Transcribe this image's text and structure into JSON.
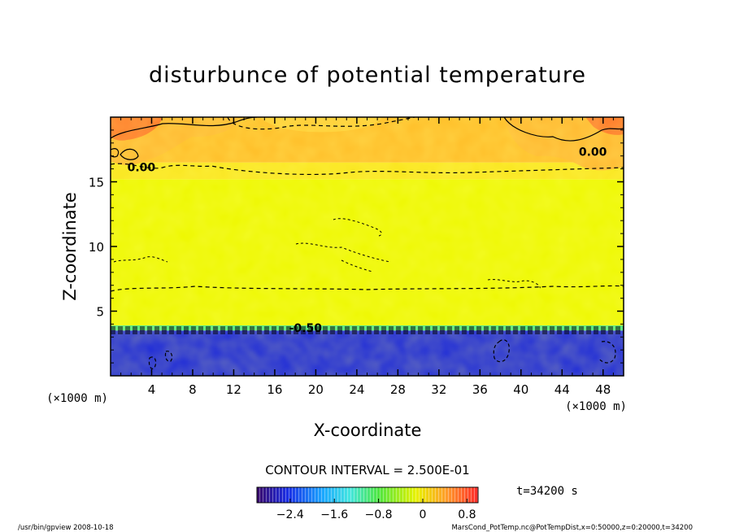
{
  "chart_data": {
    "type": "heatmap",
    "title": "disturbunce of potential temperature",
    "xlabel": "X-coordinate",
    "ylabel": "Z-coordinate",
    "x_unit": "(×1000 m)",
    "y_unit": "(×1000 m)",
    "xlim": [
      0,
      50
    ],
    "ylim": [
      0,
      20
    ],
    "xticks": [
      4,
      8,
      12,
      16,
      20,
      24,
      28,
      32,
      36,
      40,
      44,
      48
    ],
    "yticks": [
      5,
      10,
      15
    ],
    "contour_interval_label": "CONTOUR INTERVAL = 2.500E-01",
    "time_label": "t=34200 s",
    "contour_labels": [
      {
        "text": "0.00",
        "x": 3,
        "z": 16.0
      },
      {
        "text": "0.00",
        "x": 47,
        "z": 17.2
      },
      {
        "text": "-0.50",
        "x": 19,
        "z": 3.6
      }
    ],
    "bands": [
      {
        "z_from": 0,
        "z_to": 3.5,
        "value": -2.5
      },
      {
        "z_from": 3.5,
        "z_to": 3.9,
        "value": -1.0
      },
      {
        "z_from": 3.9,
        "z_to": 15.2,
        "value": 0.1
      },
      {
        "z_from": 15.2,
        "z_to": 16.5,
        "value": 0.2
      },
      {
        "z_from": 16.5,
        "z_to": 20,
        "value": 0.4
      }
    ],
    "colorbar": {
      "min": -3.0,
      "max": 1.0,
      "ticks": [
        -2.4,
        -1.6,
        -0.8,
        0,
        0.8
      ],
      "tick_labels": [
        "−2.4",
        "−1.6",
        "−0.8",
        "0",
        "0.8"
      ]
    }
  },
  "footer": {
    "left": "/usr/bin/gpview   2008-10-18",
    "right": "MarsCond_PotTemp.nc@PotTempDist,x=0:50000,z=0:20000,t=34200"
  }
}
